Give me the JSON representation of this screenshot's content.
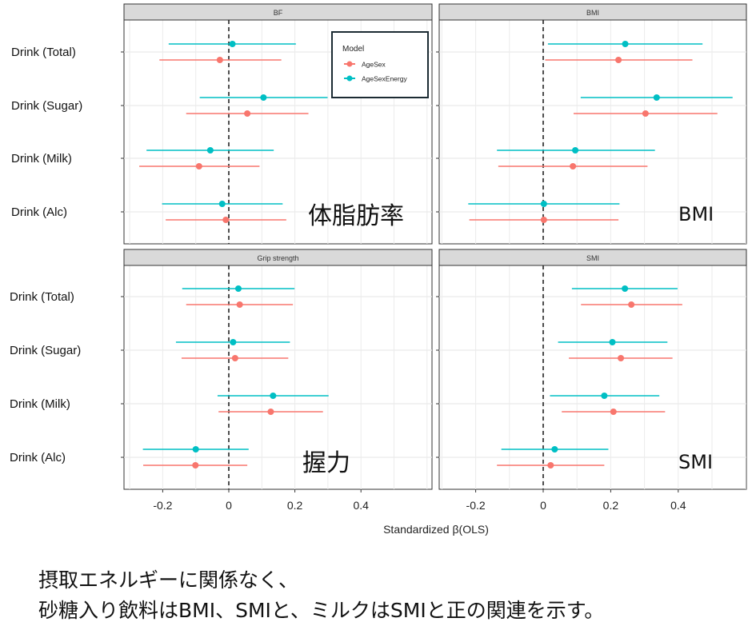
{
  "chart_data": {
    "type": "forest",
    "xlabel": "Standardized β(OLS)",
    "xlim": [
      -0.31,
      0.61
    ],
    "xticks": [
      "-0.2",
      "0",
      "0.2",
      "0.4"
    ],
    "xtick_values": [
      -0.2,
      0,
      0.2,
      0.4
    ],
    "grid": true,
    "reference_line": 0,
    "categories": [
      "Drink (Total)",
      "Drink (Sugar)",
      "Drink (Milk)",
      "Drink (Alc)"
    ],
    "legend": {
      "title": "Model",
      "placement": "top-right of first panel",
      "entries": [
        "AgeSex",
        "AgeSexEnergy"
      ]
    },
    "colors": {
      "AgeSex": "#F8766D",
      "AgeSexEnergy": "#00BFC4"
    },
    "panels": [
      {
        "title": "BF",
        "annotation": "体脂肪率",
        "series": [
          {
            "name": "AgeSex",
            "est": [
              -0.027,
              0.056,
              -0.09,
              -0.009
            ],
            "lo": [
              -0.21,
              -0.129,
              -0.271,
              -0.191
            ],
            "hi": [
              0.159,
              0.241,
              0.093,
              0.174
            ]
          },
          {
            "name": "AgeSexEnergy",
            "est": [
              0.011,
              0.105,
              -0.056,
              -0.02
            ],
            "lo": [
              -0.182,
              -0.088,
              -0.249,
              -0.202
            ],
            "hi": [
              0.203,
              0.299,
              0.136,
              0.163
            ]
          }
        ]
      },
      {
        "title": "BMI",
        "annotation": "BMI",
        "series": [
          {
            "name": "AgeSex",
            "est": [
              0.223,
              0.303,
              0.088,
              0.002
            ],
            "lo": [
              0.006,
              0.09,
              -0.133,
              -0.219
            ],
            "hi": [
              0.442,
              0.516,
              0.309,
              0.223
            ]
          },
          {
            "name": "AgeSexEnergy",
            "est": [
              0.243,
              0.336,
              0.095,
              0.002
            ],
            "lo": [
              0.014,
              0.111,
              -0.137,
              -0.222
            ],
            "hi": [
              0.472,
              0.561,
              0.331,
              0.226
            ]
          }
        ]
      },
      {
        "title": "Grip strength",
        "annotation": "握力",
        "series": [
          {
            "name": "AgeSex",
            "est": [
              0.033,
              0.019,
              0.127,
              -0.101
            ],
            "lo": [
              -0.129,
              -0.143,
              -0.031,
              -0.259
            ],
            "hi": [
              0.194,
              0.18,
              0.285,
              0.056
            ]
          },
          {
            "name": "AgeSexEnergy",
            "est": [
              0.029,
              0.013,
              0.134,
              -0.1
            ],
            "lo": [
              -0.141,
              -0.16,
              -0.034,
              -0.26
            ],
            "hi": [
              0.199,
              0.185,
              0.302,
              0.06
            ]
          }
        ]
      },
      {
        "title": "SMI",
        "annotation": "SMI",
        "series": [
          {
            "name": "AgeSex",
            "est": [
              0.261,
              0.23,
              0.208,
              0.022
            ],
            "lo": [
              0.112,
              0.076,
              0.055,
              -0.137
            ],
            "hi": [
              0.412,
              0.383,
              0.361,
              0.181
            ]
          },
          {
            "name": "AgeSexEnergy",
            "est": [
              0.242,
              0.205,
              0.181,
              0.034
            ],
            "lo": [
              0.085,
              0.044,
              0.02,
              -0.124
            ],
            "hi": [
              0.398,
              0.368,
              0.344,
              0.193
            ]
          }
        ]
      }
    ]
  },
  "caption": {
    "line1": "摂取エネルギーに関係なく、",
    "line2": "砂糖入り飲料はBMI、SMIと、ミルクはSMIと正の関連を示す。"
  }
}
